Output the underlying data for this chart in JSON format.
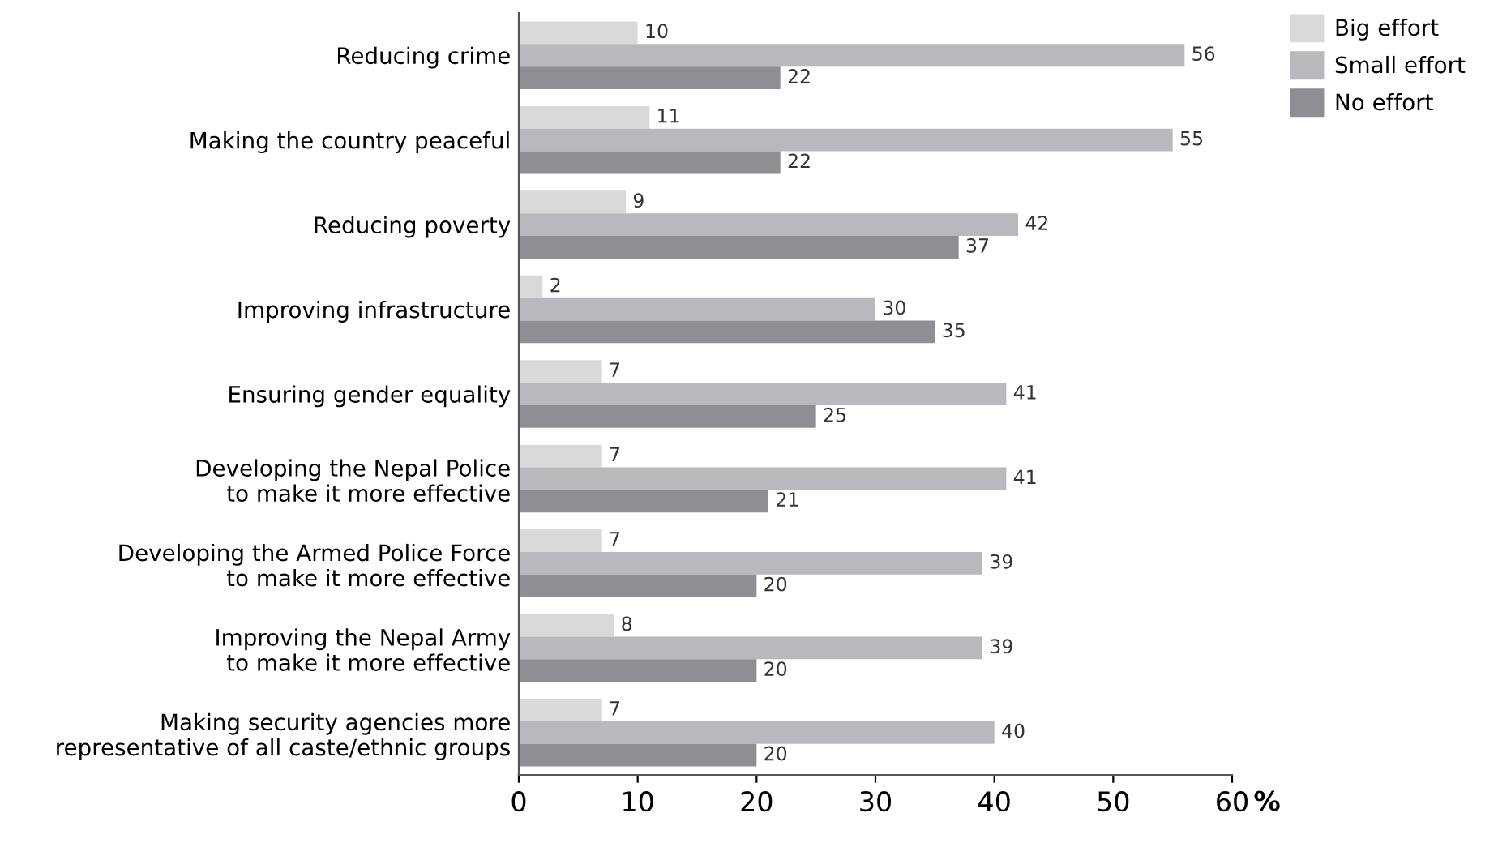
{
  "chart_data": {
    "type": "bar",
    "orientation": "horizontal",
    "xlabel": "%",
    "categories": [
      "Reducing crime",
      "Making the country peaceful",
      "Reducing poverty",
      "Improving infrastructure",
      "Ensuring gender equality",
      "Developing the Nepal Police\nto make it more effective",
      "Developing the Armed Police Force\nto make it more effective",
      "Improving the Nepal Army\nto make it more effective",
      "Making security agencies more\nrepresentative of all caste/ethnic groups"
    ],
    "series": [
      {
        "name": "Big effort",
        "color": "#d9d9da",
        "values": [
          10,
          11,
          9,
          2,
          7,
          7,
          7,
          8,
          7
        ]
      },
      {
        "name": "Small effort",
        "color": "#b8b9bc",
        "values": [
          56,
          55,
          42,
          30,
          41,
          41,
          39,
          39,
          40
        ]
      },
      {
        "name": "No effort",
        "color": "#8e8f93",
        "values": [
          22,
          22,
          37,
          35,
          25,
          21,
          20,
          20,
          20
        ]
      }
    ],
    "xlim": [
      0,
      60
    ],
    "xticks": [
      0,
      10,
      20,
      30,
      40,
      50,
      60
    ],
    "data_labels": true,
    "grid": false,
    "legend": "top right"
  }
}
